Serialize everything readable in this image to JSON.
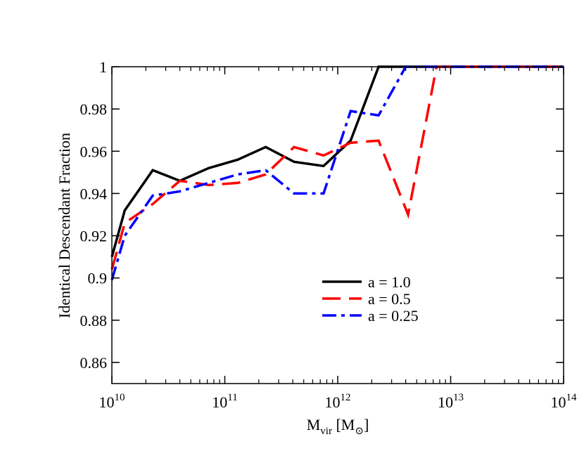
{
  "chart_data": {
    "type": "line",
    "title": "",
    "xlabel": "M_vir [M_⊙]",
    "xlabel_parts": {
      "main": "M",
      "sub": "vir",
      "bracket_open": " [M",
      "sub2": "⊙",
      "bracket_close": "]"
    },
    "ylabel": "Identical Descendant Fraction",
    "xscale": "log",
    "xlim": [
      10000000000.0,
      100000000000000.0
    ],
    "ylim": [
      0.85,
      1.0
    ],
    "x_ticks": [
      {
        "value": 10000000000.0,
        "base": "10",
        "exp": "10"
      },
      {
        "value": 100000000000.0,
        "base": "10",
        "exp": "11"
      },
      {
        "value": 1000000000000.0,
        "base": "10",
        "exp": "12"
      },
      {
        "value": 10000000000000.0,
        "base": "10",
        "exp": "13"
      },
      {
        "value": 100000000000000.0,
        "base": "10",
        "exp": "14"
      }
    ],
    "y_ticks": [
      {
        "value": 0.86,
        "label": "0.86"
      },
      {
        "value": 0.88,
        "label": "0.88"
      },
      {
        "value": 0.9,
        "label": "0.9"
      },
      {
        "value": 0.92,
        "label": "0.92"
      },
      {
        "value": 0.94,
        "label": "0.94"
      },
      {
        "value": 0.96,
        "label": "0.96"
      },
      {
        "value": 0.98,
        "label": "0.98"
      },
      {
        "value": 1.0,
        "label": "1"
      }
    ],
    "grid": false,
    "legend_position": "lower-center",
    "series": [
      {
        "name": "a = 1.0",
        "color": "#000000",
        "style": "solid",
        "points": [
          [
            10000000000.0,
            0.91
          ],
          [
            13000000000.0,
            0.932
          ],
          [
            23000000000.0,
            0.951
          ],
          [
            40000000000.0,
            0.946
          ],
          [
            72000000000.0,
            0.952
          ],
          [
            130000000000.0,
            0.956
          ],
          [
            230000000000.0,
            0.962
          ],
          [
            410000000000.0,
            0.955
          ],
          [
            750000000000.0,
            0.953
          ],
          [
            1300000000000.0,
            0.965
          ],
          [
            2300000000000.0,
            1.0
          ],
          [
            4000000000000.0,
            1.0
          ],
          [
            100000000000000.0,
            1.0
          ]
        ]
      },
      {
        "name": "a = 0.5",
        "color": "#ff0000",
        "style": "dashed",
        "points": [
          [
            10000000000.0,
            0.904
          ],
          [
            13000000000.0,
            0.926
          ],
          [
            23000000000.0,
            0.935
          ],
          [
            40000000000.0,
            0.946
          ],
          [
            72000000000.0,
            0.944
          ],
          [
            130000000000.0,
            0.945
          ],
          [
            230000000000.0,
            0.949
          ],
          [
            410000000000.0,
            0.962
          ],
          [
            750000000000.0,
            0.958
          ],
          [
            1300000000000.0,
            0.964
          ],
          [
            2300000000000.0,
            0.965
          ],
          [
            4200000000000.0,
            0.93
          ],
          [
            7500000000000.0,
            1.0
          ],
          [
            13000000000000.0,
            1.0
          ],
          [
            100000000000000.0,
            1.0
          ]
        ]
      },
      {
        "name": "a = 0.25",
        "color": "#0000ff",
        "style": "dashdot",
        "points": [
          [
            10000000000.0,
            0.899
          ],
          [
            13000000000.0,
            0.92
          ],
          [
            23000000000.0,
            0.939
          ],
          [
            40000000000.0,
            0.941
          ],
          [
            72000000000.0,
            0.945
          ],
          [
            130000000000.0,
            0.949
          ],
          [
            230000000000.0,
            0.951
          ],
          [
            410000000000.0,
            0.94
          ],
          [
            750000000000.0,
            0.94
          ],
          [
            1300000000000.0,
            0.979
          ],
          [
            2300000000000.0,
            0.977
          ],
          [
            4000000000000.0,
            1.0
          ],
          [
            100000000000000.0,
            1.0
          ]
        ]
      }
    ]
  }
}
